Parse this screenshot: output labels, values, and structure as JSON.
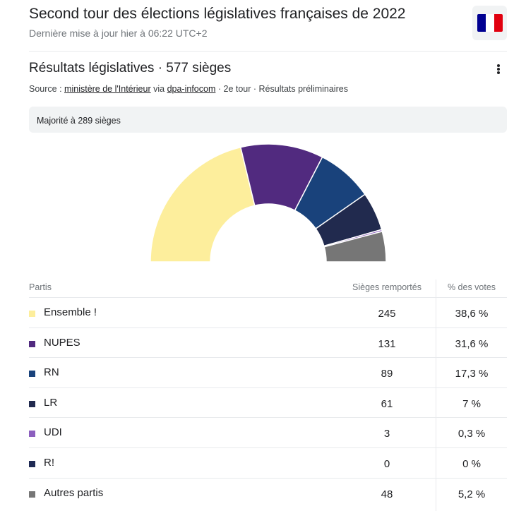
{
  "header": {
    "title": "Second tour des élections législatives françaises de 2022",
    "updated": "Dernière mise à jour hier à 06:22 UTC+2",
    "flag_colors": [
      "#000091",
      "#ffffff",
      "#e1000f"
    ]
  },
  "section": {
    "title": "Résultats législatives · 577 sièges",
    "menu_icon": "more-vert-icon",
    "source_prefix": "Source :",
    "source_link1": "ministère de l'Intérieur",
    "source_via": "via",
    "source_link2": "dpa-infocom",
    "source_suffix": "· 2e tour · Résultats préliminaires"
  },
  "majority": "Majorité à 289 sièges",
  "table": {
    "headers": [
      "Partis",
      "Sièges remportés",
      "% des votes"
    ]
  },
  "chart_data": {
    "type": "hemicycle",
    "total_seats": 577,
    "parties": [
      {
        "name": "Ensemble !",
        "seats": 245,
        "votes": "38,6 %",
        "color": "#fdee9c"
      },
      {
        "name": "NUPES",
        "seats": 131,
        "votes": "31,6 %",
        "color": "#512a7f"
      },
      {
        "name": "RN",
        "seats": 89,
        "votes": "17,3 %",
        "color": "#19427b"
      },
      {
        "name": "LR",
        "seats": 61,
        "votes": "7 %",
        "color": "#212a4e"
      },
      {
        "name": "UDI",
        "seats": 3,
        "votes": "0,3 %",
        "color": "#8c5fbe"
      },
      {
        "name": "R!",
        "seats": 0,
        "votes": "0 %",
        "color": "#1f2a54"
      },
      {
        "name": "Autres partis",
        "seats": 48,
        "votes": "5,2 %",
        "color": "#767676"
      }
    ]
  }
}
